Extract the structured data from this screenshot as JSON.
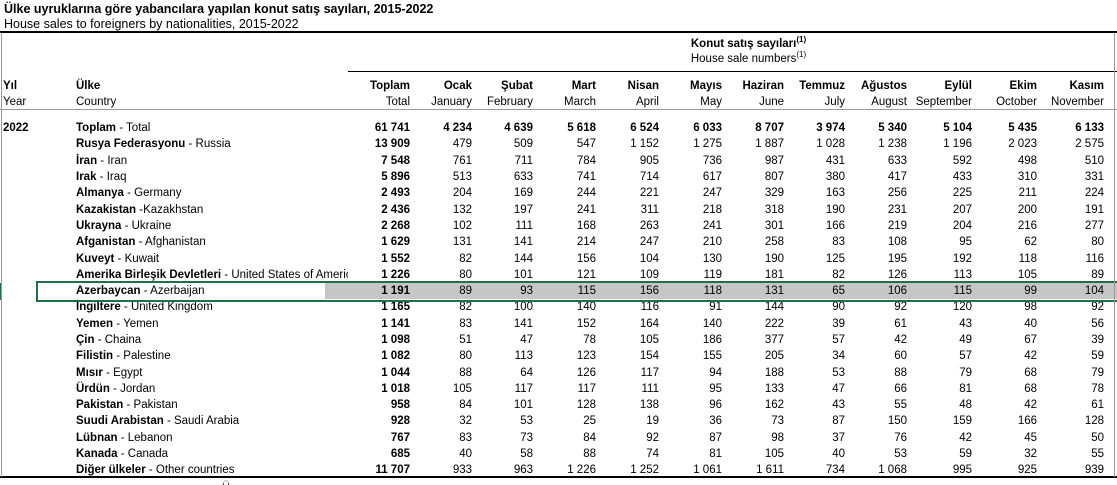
{
  "title": {
    "tr": "Ülke uyruklarına göre yabancılara yapılan konut satış sayıları, 2015-2022",
    "en": "House sales to foreigners by nationalities, 2015-2022"
  },
  "table": {
    "spanner": {
      "tr": "Konut satış sayıları",
      "en": "House sale numbers",
      "marker": "(1)"
    },
    "year": "2022",
    "columns": [
      {
        "tr": "Yıl",
        "en": "Year"
      },
      {
        "tr": "Ülke",
        "en": "Country"
      },
      {
        "tr": "Toplam",
        "en": "Total"
      },
      {
        "tr": "Ocak",
        "en": "January"
      },
      {
        "tr": "Şubat",
        "en": "February"
      },
      {
        "tr": "Mart",
        "en": "March"
      },
      {
        "tr": "Nisan",
        "en": "April"
      },
      {
        "tr": "Mayıs",
        "en": "May"
      },
      {
        "tr": "Haziran",
        "en": "June"
      },
      {
        "tr": "Temmuz",
        "en": "July"
      },
      {
        "tr": "Ağustos",
        "en": "August"
      },
      {
        "tr": "Eylül",
        "en": "September"
      },
      {
        "tr": "Ekim",
        "en": "October"
      },
      {
        "tr": "Kasım",
        "en": "November"
      }
    ],
    "highlight_color": "#1e7145",
    "highlight_fill": "#c6c6c6",
    "rows": [
      {
        "tr": "Toplam",
        "en": "Total",
        "sep": " - ",
        "bold": true,
        "highlight": false,
        "values": [
          "61 741",
          "4 234",
          "4 639",
          "5 618",
          "6 524",
          "6 033",
          "8 707",
          "3 974",
          "5 340",
          "5 104",
          "5 435",
          "6 133"
        ]
      },
      {
        "tr": "Rusya Federasyonu",
        "en": "Russia",
        "sep": " - ",
        "bold": false,
        "highlight": false,
        "values": [
          "13 909",
          "479",
          "509",
          "547",
          "1 152",
          "1 275",
          "1 887",
          "1 028",
          "1 238",
          "1 196",
          "2 023",
          "2 575"
        ]
      },
      {
        "tr": "İran",
        "en": "Iran",
        "sep": " - ",
        "bold": false,
        "highlight": false,
        "values": [
          "7 548",
          "761",
          "711",
          "784",
          "905",
          "736",
          "987",
          "431",
          "633",
          "592",
          "498",
          "510"
        ]
      },
      {
        "tr": "Irak",
        "en": "Iraq",
        "sep": " - ",
        "bold": false,
        "highlight": false,
        "values": [
          "5 896",
          "513",
          "633",
          "741",
          "714",
          "617",
          "807",
          "380",
          "417",
          "433",
          "310",
          "331"
        ]
      },
      {
        "tr": "Almanya",
        "en": "Germany",
        "sep": " - ",
        "bold": false,
        "highlight": false,
        "values": [
          "2 493",
          "204",
          "169",
          "244",
          "221",
          "247",
          "329",
          "163",
          "256",
          "225",
          "211",
          "224"
        ]
      },
      {
        "tr": "Kazakistan",
        "en": "Kazakhstan",
        "sep": " -",
        "bold": false,
        "highlight": false,
        "values": [
          "2 436",
          "132",
          "197",
          "241",
          "311",
          "218",
          "318",
          "190",
          "231",
          "207",
          "200",
          "191"
        ]
      },
      {
        "tr": "Ukrayna",
        "en": "Ukraine",
        "sep": " - ",
        "bold": false,
        "highlight": false,
        "values": [
          "2 268",
          "102",
          "111",
          "168",
          "263",
          "241",
          "301",
          "166",
          "219",
          "204",
          "216",
          "277"
        ]
      },
      {
        "tr": "Afganistan",
        "en": "Afghanistan",
        "sep": " - ",
        "bold": false,
        "highlight": false,
        "values": [
          "1 629",
          "131",
          "141",
          "214",
          "247",
          "210",
          "258",
          "83",
          "108",
          "95",
          "62",
          "80"
        ]
      },
      {
        "tr": "Kuveyt",
        "en": "Kuwait",
        "sep": " - ",
        "bold": false,
        "highlight": false,
        "values": [
          "1 552",
          "82",
          "144",
          "156",
          "104",
          "130",
          "190",
          "125",
          "195",
          "192",
          "118",
          "116"
        ]
      },
      {
        "tr": "Amerika Birleşik Devletleri",
        "en": "United States of America",
        "sep": " - ",
        "bold": false,
        "highlight": false,
        "values": [
          "1 226",
          "80",
          "101",
          "121",
          "109",
          "119",
          "181",
          "82",
          "126",
          "113",
          "105",
          "89"
        ]
      },
      {
        "tr": "Azerbaycan",
        "en": "Azerbaijan",
        "sep": " - ",
        "bold": false,
        "highlight": true,
        "values": [
          "1 191",
          "89",
          "93",
          "115",
          "156",
          "118",
          "131",
          "65",
          "106",
          "115",
          "99",
          "104"
        ]
      },
      {
        "tr": "İngiltere",
        "en": "United Kingdom",
        "sep": " - ",
        "bold": false,
        "highlight": false,
        "values": [
          "1 165",
          "82",
          "100",
          "140",
          "116",
          "91",
          "144",
          "90",
          "92",
          "120",
          "98",
          "92"
        ]
      },
      {
        "tr": "Yemen",
        "en": "Yemen",
        "sep": " - ",
        "bold": false,
        "highlight": false,
        "values": [
          "1 141",
          "83",
          "141",
          "152",
          "164",
          "140",
          "222",
          "39",
          "61",
          "43",
          "40",
          "56"
        ]
      },
      {
        "tr": "Çin",
        "en": "Chaina",
        "sep": " - ",
        "bold": false,
        "highlight": false,
        "values": [
          "1 098",
          "51",
          "47",
          "78",
          "105",
          "186",
          "377",
          "57",
          "42",
          "49",
          "67",
          "39"
        ]
      },
      {
        "tr": "Filistin",
        "en": "Palestine",
        "sep": " - ",
        "bold": false,
        "highlight": false,
        "values": [
          "1 082",
          "80",
          "113",
          "123",
          "154",
          "155",
          "205",
          "34",
          "60",
          "57",
          "42",
          "59"
        ]
      },
      {
        "tr": "Mısır",
        "en": "Egypt",
        "sep": " - ",
        "bold": false,
        "highlight": false,
        "values": [
          "1 044",
          "88",
          "64",
          "126",
          "117",
          "94",
          "188",
          "53",
          "88",
          "79",
          "68",
          "79"
        ]
      },
      {
        "tr": "Ürdün",
        "en": "Jordan",
        "sep": " - ",
        "bold": false,
        "highlight": false,
        "values": [
          "1 018",
          "105",
          "117",
          "117",
          "111",
          "95",
          "133",
          "47",
          "66",
          "81",
          "68",
          "78"
        ]
      },
      {
        "tr": "Pakistan",
        "en": "Pakistan",
        "sep": " - ",
        "bold": false,
        "highlight": false,
        "values": [
          "958",
          "84",
          "101",
          "128",
          "138",
          "96",
          "162",
          "43",
          "55",
          "48",
          "42",
          "61"
        ]
      },
      {
        "tr": "Suudi Arabistan",
        "en": "Saudi Arabia",
        "sep": " - ",
        "bold": false,
        "highlight": false,
        "values": [
          "928",
          "32",
          "53",
          "25",
          "19",
          "36",
          "73",
          "87",
          "150",
          "159",
          "166",
          "128"
        ]
      },
      {
        "tr": "Lübnan",
        "en": "Lebanon",
        "sep": " - ",
        "bold": false,
        "highlight": false,
        "values": [
          "767",
          "83",
          "73",
          "84",
          "92",
          "87",
          "98",
          "37",
          "76",
          "42",
          "45",
          "50"
        ]
      },
      {
        "tr": "Kanada",
        "en": "Canada",
        "sep": " - ",
        "bold": false,
        "highlight": false,
        "values": [
          "685",
          "40",
          "58",
          "88",
          "74",
          "81",
          "105",
          "40",
          "53",
          "59",
          "32",
          "55"
        ]
      },
      {
        "tr": "Diğer ülkeler",
        "en": "Other countries",
        "sep": " - ",
        "bold": false,
        "highlight": false,
        "values": [
          "11 707",
          "933",
          "963",
          "1 226",
          "1 252",
          "1 061",
          "1 611",
          "734",
          "1 068",
          "995",
          "925",
          "939"
        ]
      }
    ],
    "footnote_fragment": "Ü"
  }
}
